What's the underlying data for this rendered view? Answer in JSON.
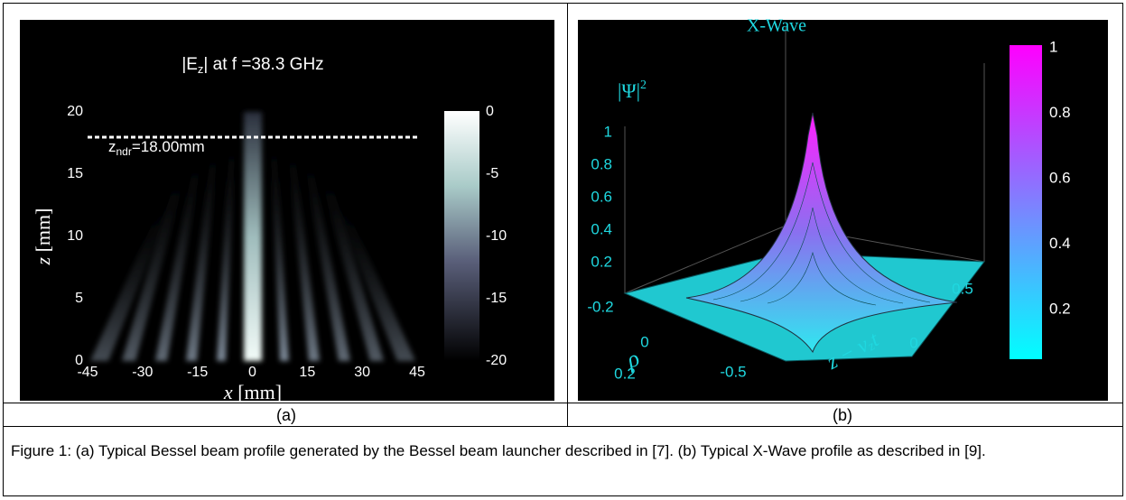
{
  "panel_a": {
    "title": [
      "|E",
      "z",
      "| at f =38.3 GHz"
    ],
    "x_label": [
      "x",
      "[mm]"
    ],
    "y_label": [
      "z",
      "[mm]"
    ],
    "x_ticks": [
      "-45",
      "-30",
      "-15",
      "0",
      "15",
      "30",
      "45"
    ],
    "y_ticks": [
      "0",
      "5",
      "10",
      "15",
      "20"
    ],
    "colorbar_ticks": [
      "0",
      "-5",
      "-10",
      "-15",
      "-20"
    ],
    "annotation": [
      "z",
      "ndr",
      "=18.00mm"
    ],
    "label": "(a)"
  },
  "panel_b": {
    "title": "X-Wave",
    "z_label": [
      "|Ψ|",
      "2"
    ],
    "z_ticks": [
      "1",
      "0.8",
      "0.6",
      "0.4",
      "0.2"
    ],
    "z_bottom": "-0.2",
    "rho_label": "ρ",
    "rho_ticks": [
      "0",
      "0.2"
    ],
    "t_label": "z − v",
    "t_label_sub": "z",
    "t_label_end": "t",
    "t_ticks": [
      "-0.5",
      "0",
      "0.5"
    ],
    "colorbar_ticks": [
      "1",
      "0.8",
      "0.6",
      "0.4",
      "0.2"
    ],
    "label": "(b)"
  },
  "caption": "Figure 1: (a) Typical Bessel beam profile generated by the Bessel beam launcher described in [7]. (b) Typical X-Wave profile as described in [9]."
}
